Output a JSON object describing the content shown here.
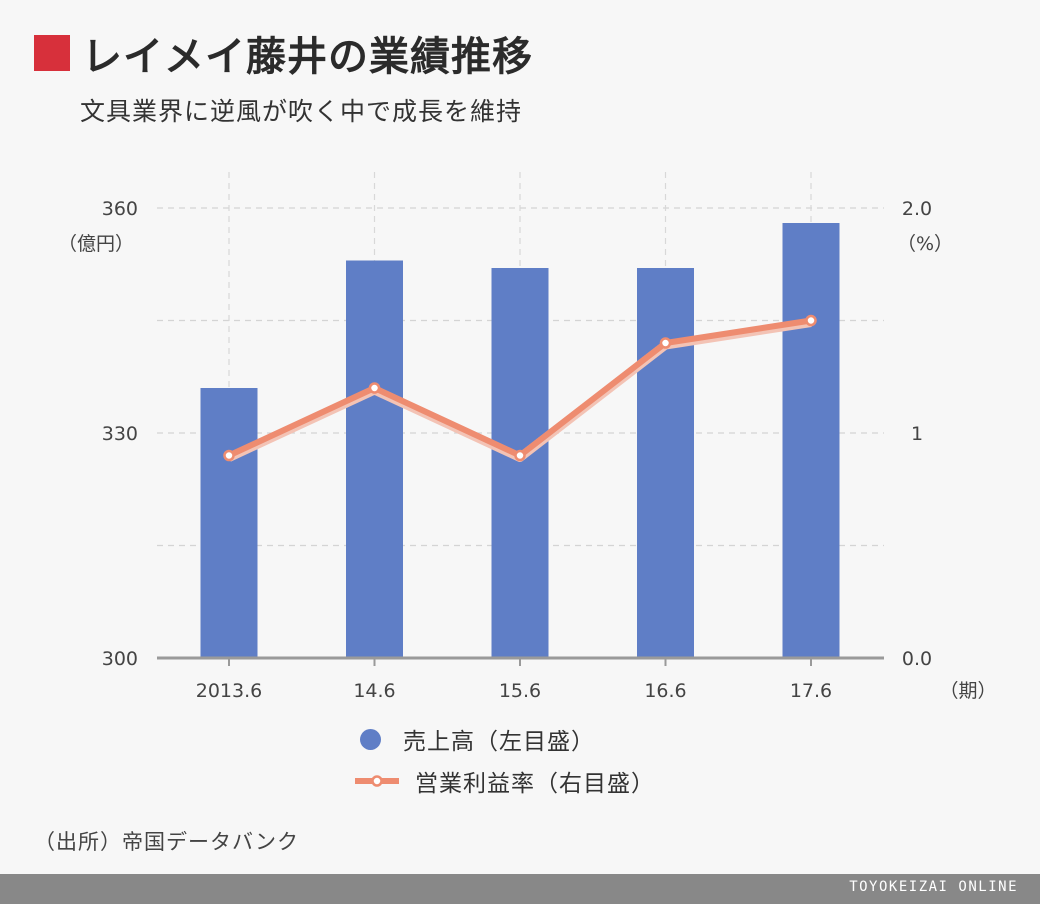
{
  "title": "レイメイ藤井の業績推移",
  "subtitle": "文具業界に逆風が吹く中で成長を維持",
  "source": "（出所）帝国データバンク",
  "footer_brand": "TOYOKEIZAI ONLINE",
  "legend": {
    "bar_label": "売上高（左目盛）",
    "line_label": "営業利益率（右目盛）"
  },
  "colors": {
    "bar": "#5f7ec6",
    "line": "#ee8c70",
    "title_accent": "#d7303b"
  },
  "chart_data": {
    "type": "bar+line",
    "categories": [
      "2013.6",
      "14.6",
      "15.6",
      "16.6",
      "17.6"
    ],
    "x_unit": "（期）",
    "series": [
      {
        "name": "売上高（左目盛）",
        "type": "bar",
        "axis": "left",
        "values": [
          336,
          353,
          352,
          352,
          358
        ]
      },
      {
        "name": "営業利益率（右目盛）",
        "type": "line",
        "axis": "right",
        "values": [
          0.9,
          1.2,
          0.9,
          1.4,
          1.5
        ]
      }
    ],
    "y_left": {
      "unit": "（億円）",
      "ylim": [
        300,
        360
      ],
      "ticks": [
        "300",
        "330",
        "360"
      ],
      "tick_values": [
        300,
        330,
        360
      ]
    },
    "y_right": {
      "unit": "（%）",
      "ylim": [
        0,
        2
      ],
      "ticks": [
        "0.0",
        "1",
        "2.0"
      ],
      "tick_values": [
        0,
        1,
        2
      ]
    },
    "grid": true
  }
}
